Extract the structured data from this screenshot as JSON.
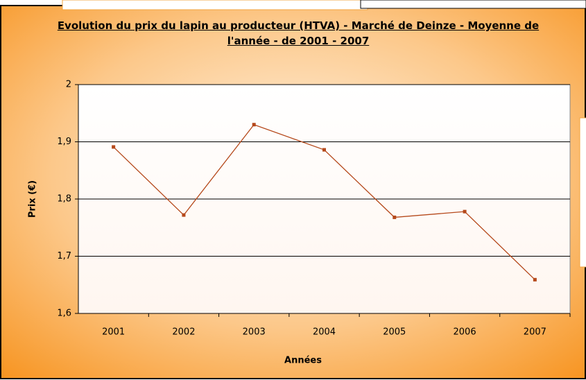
{
  "chart_data": {
    "type": "line",
    "title": "Evolution du prix du lapin au producteur (HTVA) -  Marché de Deinze - Moyenne de l'année - de 2001 - 2007",
    "x_label": "Années",
    "y_label": "Prix (€)",
    "categories": [
      "2001",
      "2002",
      "2003",
      "2004",
      "2005",
      "2006",
      "2007"
    ],
    "series": [
      {
        "name": "Prix",
        "color": "#b5481a",
        "values": [
          1.891,
          1.772,
          1.93,
          1.886,
          1.768,
          1.778,
          1.659
        ]
      }
    ],
    "ylim": [
      1.6,
      2
    ],
    "yticks": [
      {
        "value": 1.6,
        "label": "1,6"
      },
      {
        "value": 1.7,
        "label": "1,7"
      },
      {
        "value": 1.8,
        "label": "1,8"
      },
      {
        "value": 1.9,
        "label": "1,9"
      },
      2
    ],
    "grid": true
  }
}
